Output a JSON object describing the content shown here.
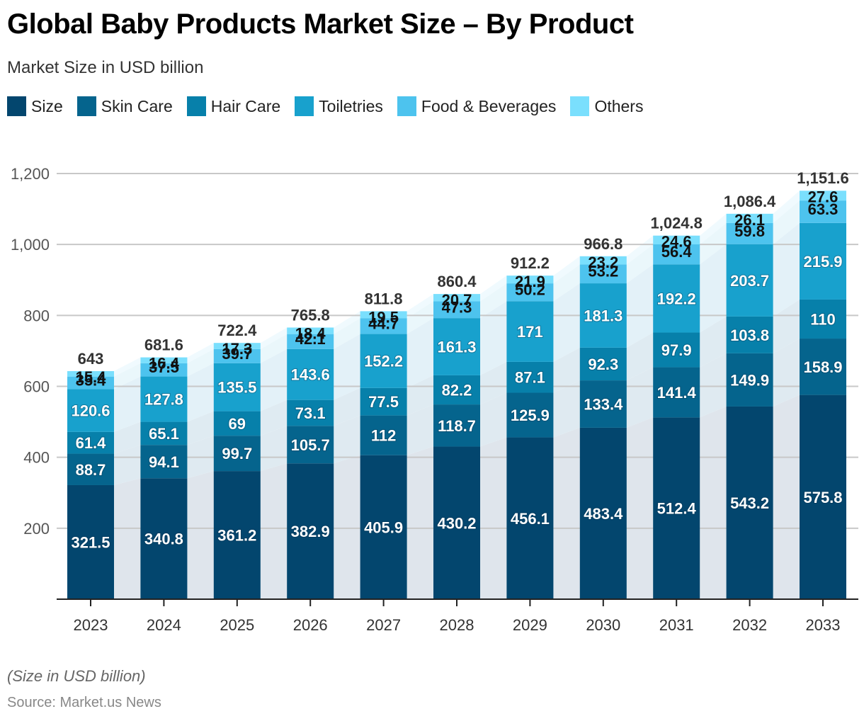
{
  "chart_data": {
    "type": "bar",
    "stacked": true,
    "title": "Global Baby Products Market Size – By Product",
    "subtitle": "Market Size in USD billion",
    "xlabel": "",
    "ylabel": "",
    "ylim": [
      0,
      1200
    ],
    "yticks": [
      200,
      400,
      600,
      800,
      1000,
      1200
    ],
    "ytick_labels": [
      "200",
      "400",
      "600",
      "800",
      "1,000",
      "1,200"
    ],
    "grid": true,
    "legend_position": "top-left",
    "categories": [
      "2023",
      "2024",
      "2025",
      "2026",
      "2027",
      "2028",
      "2029",
      "2030",
      "2031",
      "2032",
      "2033"
    ],
    "series": [
      {
        "name": "Size",
        "color": "#03466e",
        "label_color": "#ffffff",
        "values": [
          321.5,
          340.8,
          361.2,
          382.9,
          405.9,
          430.2,
          456.1,
          483.4,
          512.4,
          543.2,
          575.8
        ]
      },
      {
        "name": "Skin Care",
        "color": "#05648d",
        "label_color": "#ffffff",
        "values": [
          88.7,
          94.1,
          99.7,
          105.7,
          112,
          118.7,
          125.9,
          133.4,
          141.4,
          149.9,
          158.9
        ]
      },
      {
        "name": "Hair Care",
        "color": "#0780aa",
        "label_color": "#ffffff",
        "values": [
          61.4,
          65.1,
          69,
          73.1,
          77.5,
          82.2,
          87.1,
          92.3,
          97.9,
          103.8,
          110
        ]
      },
      {
        "name": "Toiletries",
        "color": "#18a1cd",
        "label_color": "#ffffff",
        "values": [
          120.6,
          127.8,
          135.5,
          143.6,
          152.2,
          161.3,
          171,
          181.3,
          192.2,
          203.7,
          215.9
        ]
      },
      {
        "name": "Food & Beverages",
        "color": "#4dc3ee",
        "label_color": "#111111",
        "values": [
          35.4,
          37.5,
          39.7,
          42.1,
          44.7,
          47.3,
          50.2,
          53.2,
          56.4,
          59.8,
          63.3
        ]
      },
      {
        "name": "Others",
        "color": "#7adffd",
        "label_color": "#111111",
        "values": [
          15.4,
          16.4,
          17.3,
          18.4,
          19.5,
          20.7,
          21.9,
          23.2,
          24.6,
          26.1,
          27.6
        ]
      }
    ],
    "totals": [
      643,
      681.6,
      722.4,
      765.8,
      811.8,
      860.4,
      912.2,
      966.8,
      1024.8,
      1086.4,
      1151.6
    ],
    "total_labels": [
      "643",
      "681.6",
      "722.4",
      "765.8",
      "811.8",
      "860.4",
      "912.2",
      "966.8",
      "1,024.8",
      "1,086.4",
      "1,151.6"
    ]
  },
  "footer": {
    "note": "(Size in USD billion)",
    "source": "Source: Market.us News"
  }
}
